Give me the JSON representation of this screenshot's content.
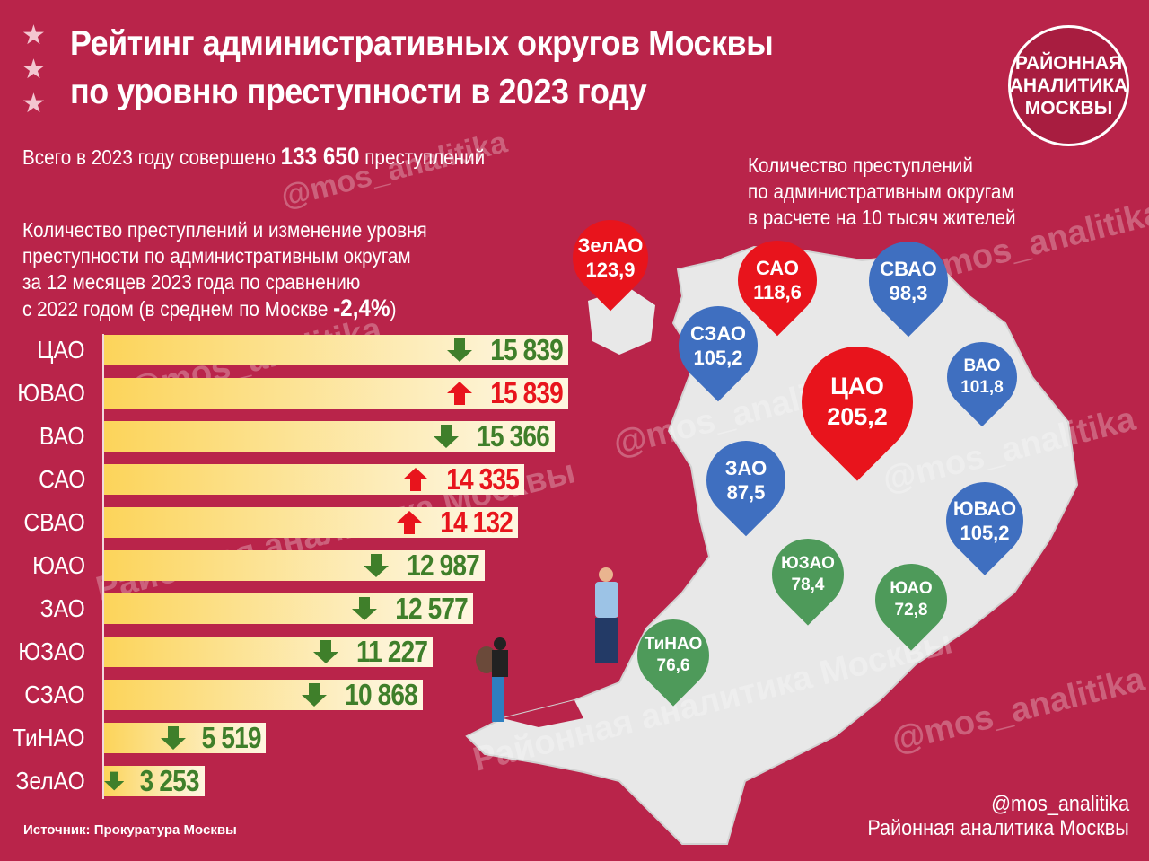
{
  "header": {
    "title_line1": "Рейтинг административных округов Москвы",
    "title_line2": "по уровню преступности в 2023 году",
    "star_icon": "★"
  },
  "logo": {
    "line1": "РАЙОННАЯ",
    "line2": "АНАЛИТИКА",
    "line3": "МОСКВЫ"
  },
  "total": {
    "prefix": "Всего в 2023 году совершено",
    "value": "133 650",
    "suffix": "преступлений"
  },
  "bar_intro": {
    "line1": "Количество преступлений и изменение уровня",
    "line2": "преступности по административным округам",
    "line3": "за 12 месяцев 2023 года по сравнению",
    "line4_prefix": "с 2022 годом (в среднем по Москве",
    "line4_value": "-2,4%",
    "line4_suffix": ")"
  },
  "map_intro": {
    "line1": "Количество преступлений",
    "line2": "по административным округам",
    "line3": "в расчете на 10 тысяч жителей"
  },
  "colors": {
    "background": "#b9244a",
    "down": "#3f7f2a",
    "up": "#e8141c",
    "pin_red": "#e8141c",
    "pin_blue": "#3f6fc0",
    "pin_green": "#4e9a5a",
    "map": "#e8e8e8"
  },
  "chart_data": [
    {
      "type": "bar",
      "title": "Количество преступлений и изменение уровня преступности по административным округам",
      "orientation": "horizontal",
      "categories": [
        "ЦАО",
        "ЮВАО",
        "ВАО",
        "САО",
        "СВАО",
        "ЮАО",
        "ЗАО",
        "ЮЗАО",
        "СЗАО",
        "ТиНАО",
        "ЗелАО"
      ],
      "values": [
        15839,
        15839,
        15366,
        14335,
        14132,
        12987,
        12577,
        11227,
        10868,
        5519,
        3253
      ],
      "labels": [
        "15 839",
        "15 839",
        "15 366",
        "14 335",
        "14 132",
        "12 987",
        "12 577",
        "11 227",
        "10 868",
        "5 519",
        "3 253"
      ],
      "trend": [
        "down",
        "up",
        "down",
        "up",
        "up",
        "down",
        "down",
        "down",
        "down",
        "down",
        "down"
      ]
    },
    {
      "type": "map",
      "title": "Количество преступлений по административным округам в расчете на 10 тысяч жителей",
      "pins": [
        {
          "name": "ЗелАО",
          "value": "123,9",
          "color": "red"
        },
        {
          "name": "САО",
          "value": "118,6",
          "color": "red"
        },
        {
          "name": "СВАО",
          "value": "98,3",
          "color": "blue"
        },
        {
          "name": "СЗАО",
          "value": "105,2",
          "color": "blue"
        },
        {
          "name": "ВАО",
          "value": "101,8",
          "color": "blue"
        },
        {
          "name": "ЦАО",
          "value": "205,2",
          "color": "red"
        },
        {
          "name": "ЗАО",
          "value": "87,5",
          "color": "blue"
        },
        {
          "name": "ЮВАО",
          "value": "105,2",
          "color": "blue"
        },
        {
          "name": "ЮЗАО",
          "value": "78,4",
          "color": "green"
        },
        {
          "name": "ЮАО",
          "value": "72,8",
          "color": "green"
        },
        {
          "name": "ТиНАО",
          "value": "76,6",
          "color": "green"
        }
      ]
    }
  ],
  "watermarks": {
    "handle": "@mos_analitika",
    "brand": "Районная аналитика Москвы"
  },
  "footer": {
    "source": "Источник: Прокуратура Москвы",
    "handle": "@mos_analitika",
    "brand": "Районная аналитика Москвы"
  }
}
